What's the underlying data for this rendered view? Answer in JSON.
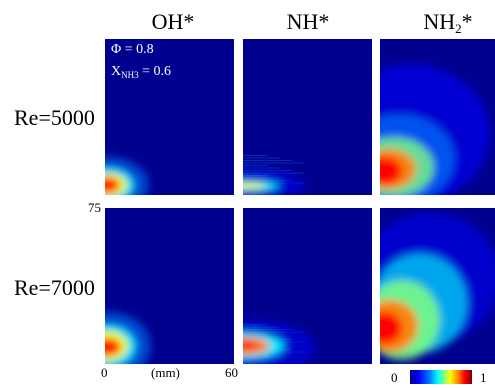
{
  "chart_data": {
    "type": "heatmap",
    "columns": [
      {
        "species": "OH",
        "suffix": "*"
      },
      {
        "species": "NH",
        "suffix": "*"
      },
      {
        "species": "NH",
        "sub": "2",
        "suffix": "*"
      }
    ],
    "rows": [
      "Re=5000",
      "Re=7000"
    ],
    "condition": {
      "phi_text": "Φ = 0.8",
      "x_prefix": "X",
      "x_sub": "NH3",
      "x_suffix": " = 0.6"
    },
    "x_axis": {
      "tick_min": "0",
      "tick_max": "60",
      "unit": "(mm)"
    },
    "y_axis": {
      "tick_top": "75"
    },
    "colorbar": {
      "min_label": "0",
      "max_label": "1",
      "colormap": "jet",
      "colors": [
        "#00008f",
        "#0000ff",
        "#0080ff",
        "#00ffff",
        "#80ff80",
        "#ffff00",
        "#ff8000",
        "#ff0000",
        "#800000"
      ]
    },
    "panels": [
      {
        "row": "Re=5000",
        "column": "OH*",
        "peak_x_mm": 3,
        "peak_y_mm": 11,
        "max_intensity": 1.0
      },
      {
        "row": "Re=5000",
        "column": "NH*",
        "peak_x_mm": 5,
        "peak_y_mm": 8,
        "max_intensity": 0.85
      },
      {
        "row": "Re=5000",
        "column": "NH2*",
        "peak_x_mm": 3,
        "peak_y_mm": 21,
        "max_intensity": 1.0
      },
      {
        "row": "Re=7000",
        "column": "OH*",
        "peak_x_mm": 3,
        "peak_y_mm": 14,
        "max_intensity": 1.0
      },
      {
        "row": "Re=7000",
        "column": "NH*",
        "peak_x_mm": 4,
        "peak_y_mm": 12,
        "max_intensity": 0.95
      },
      {
        "row": "Re=7000",
        "column": "NH2*",
        "peak_x_mm": 3,
        "peak_y_mm": 22,
        "max_intensity": 1.0
      }
    ]
  }
}
